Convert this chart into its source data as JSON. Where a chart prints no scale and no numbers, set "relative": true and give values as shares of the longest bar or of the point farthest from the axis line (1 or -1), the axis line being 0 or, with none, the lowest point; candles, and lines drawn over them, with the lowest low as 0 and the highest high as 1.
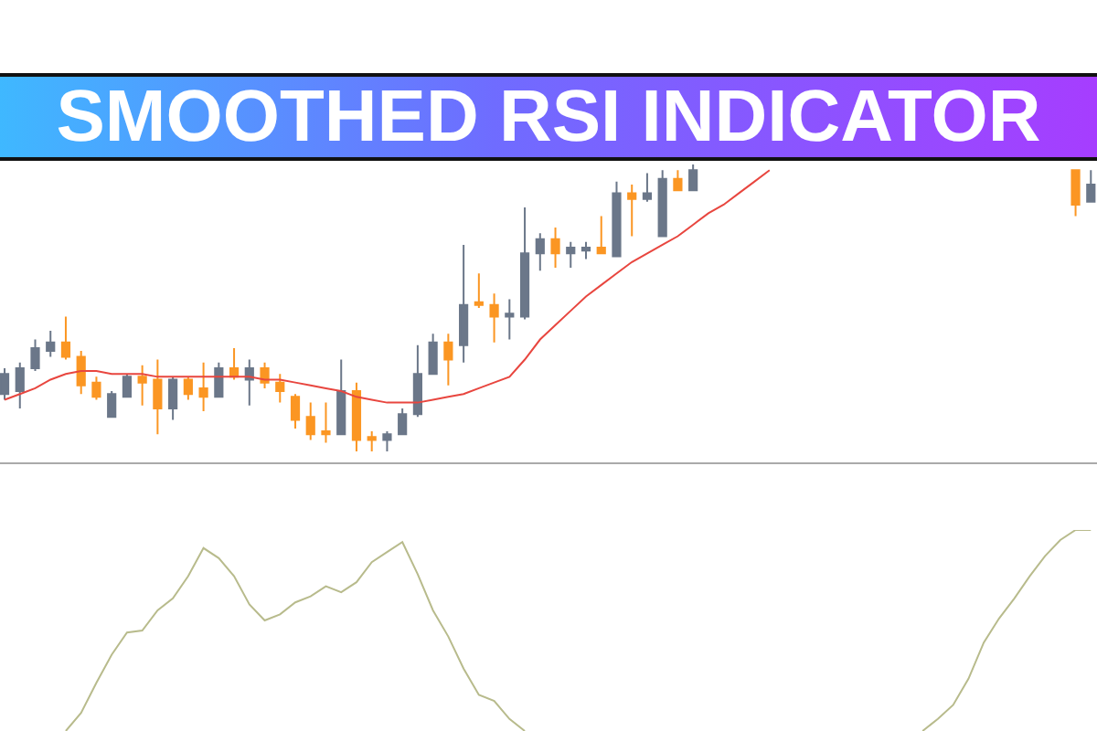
{
  "chart_data": [
    {
      "type": "candlestick",
      "title": "SMOOTHED RSI INDICATOR",
      "relative": true,
      "categories": [
        null,
        null,
        null,
        null,
        null,
        null,
        null,
        null,
        null,
        null,
        null,
        null,
        null,
        null,
        null,
        null,
        null,
        null,
        null,
        null,
        null,
        null,
        null,
        null,
        null,
        null,
        null,
        null,
        null,
        null,
        null,
        null,
        null,
        null,
        null,
        null,
        null,
        null,
        null,
        null,
        null,
        null,
        null,
        null,
        null,
        null,
        null,
        null,
        null,
        null,
        null,
        null,
        null,
        null,
        null,
        null,
        null,
        null,
        null,
        null,
        null,
        null,
        null,
        null,
        null,
        null,
        null,
        null,
        null,
        null,
        null,
        null
      ],
      "ohlc": [
        [
          0.2,
          0.29,
          0.18,
          0.27
        ],
        [
          0.21,
          0.31,
          0.15,
          0.29
        ],
        [
          0.29,
          0.39,
          0.28,
          0.36
        ],
        [
          0.35,
          0.42,
          0.33,
          0.38
        ],
        [
          0.38,
          0.47,
          0.32,
          0.33
        ],
        [
          0.33,
          0.35,
          0.2,
          0.23
        ],
        [
          0.24,
          0.26,
          0.18,
          0.19
        ],
        [
          0.12,
          0.21,
          0.12,
          0.2
        ],
        [
          0.19,
          0.27,
          0.19,
          0.26
        ],
        [
          0.26,
          0.3,
          0.16,
          0.24
        ],
        [
          0.25,
          0.32,
          0.06,
          0.15
        ],
        [
          0.15,
          0.26,
          0.11,
          0.25
        ],
        [
          0.25,
          0.26,
          0.18,
          0.2
        ],
        [
          0.22,
          0.31,
          0.14,
          0.19
        ],
        [
          0.19,
          0.31,
          0.19,
          0.29
        ],
        [
          0.29,
          0.36,
          0.25,
          0.26
        ],
        [
          0.25,
          0.32,
          0.16,
          0.29
        ],
        [
          0.29,
          0.31,
          0.22,
          0.24
        ],
        [
          0.24,
          0.27,
          0.17,
          0.21
        ],
        [
          0.19,
          0.2,
          0.08,
          0.11
        ],
        [
          0.12,
          0.17,
          0.04,
          0.06
        ],
        [
          0.07,
          0.17,
          0.03,
          0.06
        ],
        [
          0.06,
          0.32,
          0.06,
          0.21
        ],
        [
          0.21,
          0.24,
          0.0,
          0.04
        ],
        [
          0.05,
          0.07,
          0.0,
          0.04
        ],
        [
          0.04,
          0.07,
          0.0,
          0.06
        ],
        [
          0.06,
          0.15,
          0.06,
          0.13
        ],
        [
          0.13,
          0.37,
          0.12,
          0.27
        ],
        [
          0.27,
          0.41,
          0.27,
          0.38
        ],
        [
          0.38,
          0.41,
          0.23,
          0.32
        ],
        [
          0.37,
          0.72,
          0.31,
          0.51
        ],
        [
          0.52,
          0.62,
          0.5,
          0.51
        ],
        [
          0.51,
          0.55,
          0.38,
          0.47
        ],
        [
          0.47,
          0.53,
          0.39,
          0.48
        ],
        [
          0.47,
          0.85,
          0.46,
          0.69
        ],
        [
          0.69,
          0.76,
          0.63,
          0.74
        ],
        [
          0.74,
          0.78,
          0.64,
          0.69
        ],
        [
          0.69,
          0.73,
          0.64,
          0.71
        ],
        [
          0.7,
          0.73,
          0.67,
          0.71
        ],
        [
          0.71,
          0.82,
          0.69,
          0.69
        ],
        [
          0.68,
          0.94,
          0.68,
          0.9
        ],
        [
          0.9,
          0.93,
          0.75,
          0.88
        ],
        [
          0.88,
          0.97,
          0.87,
          0.9
        ],
        [
          0.75,
          0.98,
          0.75,
          0.95
        ],
        [
          0.95,
          0.98,
          0.91,
          0.91
        ],
        [
          0.91,
          1.0,
          0.91,
          0.98
        ],
        null,
        null,
        null,
        null,
        null,
        null,
        null,
        null,
        null,
        null,
        null,
        null,
        null,
        null,
        null,
        null,
        null,
        null,
        null,
        null,
        null,
        null,
        null,
        null,
        [
          0.98,
          0.98,
          0.82,
          0.86
        ],
        [
          0.87,
          0.98,
          0.87,
          0.93
        ]
      ],
      "colors": [
        "#6b7789",
        "#6b7789",
        "#6b7789",
        "#6b7789",
        "#fb9623",
        "#fb9623",
        "#fb9623",
        "#6b7789",
        "#6b7789",
        "#fb9623",
        "#fb9623",
        "#6b7789",
        "#fb9623",
        "#fb9623",
        "#6b7789",
        "#fb9623",
        "#6b7789",
        "#fb9623",
        "#fb9623",
        "#fb9623",
        "#fb9623",
        "#fb9623",
        "#6b7789",
        "#fb9623",
        "#fb9623",
        "#6b7789",
        "#6b7789",
        "#6b7789",
        "#6b7789",
        "#fb9623",
        "#6b7789",
        "#fb9623",
        "#fb9623",
        "#6b7789",
        "#6b7789",
        "#6b7789",
        "#fb9623",
        "#6b7789",
        "#6b7789",
        "#fb9623",
        "#6b7789",
        "#fb9623",
        "#6b7789",
        "#6b7789",
        "#fb9623",
        "#6b7789",
        null,
        null,
        null,
        null,
        null,
        null,
        null,
        null,
        null,
        null,
        null,
        null,
        null,
        null,
        null,
        null,
        null,
        null,
        null,
        null,
        null,
        null,
        null,
        null,
        "#fb9623",
        "#6b7789"
      ],
      "series": [
        {
          "type": "line",
          "color": "#e8463f",
          "values": [
            0.18,
            0.2,
            0.22,
            0.25,
            0.27,
            0.28,
            0.28,
            0.27,
            0.27,
            0.27,
            0.26,
            0.26,
            0.26,
            0.26,
            0.26,
            0.26,
            0.26,
            0.25,
            0.25,
            0.24,
            0.23,
            0.22,
            0.21,
            0.19,
            0.18,
            0.17,
            0.17,
            0.17,
            0.18,
            0.19,
            0.2,
            0.22,
            0.24,
            0.26,
            0.32,
            0.39,
            0.44,
            0.49,
            0.54,
            0.58,
            0.62,
            0.66,
            0.69,
            0.72,
            0.75,
            0.79,
            0.83,
            0.86,
            0.9,
            0.94,
            0.98,
            null,
            null,
            null,
            null,
            null,
            null,
            null,
            null,
            null,
            null,
            null,
            null,
            null,
            null,
            null,
            null,
            null,
            null,
            null,
            null,
            null
          ]
        }
      ]
    },
    {
      "type": "line",
      "relative": true,
      "categories": [
        null,
        null,
        null,
        null,
        null,
        null,
        null,
        null,
        null,
        null,
        null,
        null,
        null,
        null,
        null,
        null,
        null,
        null,
        null,
        null,
        null,
        null,
        null,
        null,
        null,
        null,
        null,
        null,
        null,
        null,
        null,
        null,
        null,
        null,
        null,
        null,
        null,
        null,
        null,
        null,
        null,
        null,
        null,
        null,
        null,
        null,
        null,
        null,
        null,
        null,
        null,
        null,
        null,
        null,
        null,
        null,
        null,
        null,
        null,
        null,
        null,
        null,
        null,
        null,
        null,
        null,
        null,
        null,
        null,
        null,
        null,
        null
      ],
      "series": [
        {
          "color": "#b8bb8c",
          "values": [
            null,
            null,
            null,
            null,
            0,
            0.09,
            0.24,
            0.38,
            0.49,
            0.5,
            0.6,
            0.66,
            0.77,
            0.91,
            0.86,
            0.77,
            0.63,
            0.55,
            0.58,
            0.64,
            0.67,
            0.72,
            0.69,
            0.74,
            0.84,
            0.89,
            0.94,
            0.78,
            0.6,
            0.47,
            0.31,
            0.18,
            0.15,
            0.06,
            0,
            null,
            null,
            null,
            null,
            null,
            null,
            null,
            null,
            null,
            null,
            null,
            null,
            null,
            null,
            null,
            null,
            null,
            null,
            null,
            null,
            null,
            null,
            null,
            null,
            null,
            0,
            0.06,
            0.13,
            0.26,
            0.44,
            0.56,
            0.66,
            0.77,
            0.87,
            0.95,
            1.0,
            1.0
          ]
        }
      ]
    }
  ]
}
